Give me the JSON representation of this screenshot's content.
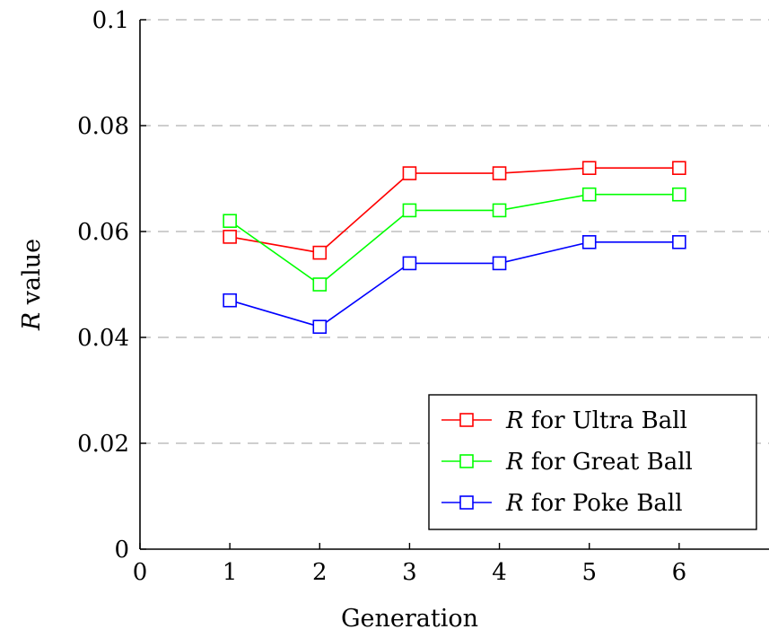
{
  "chart_data": {
    "type": "line",
    "x": [
      1,
      2,
      3,
      4,
      5,
      6
    ],
    "series": [
      {
        "name": "R for Ultra Ball",
        "values": [
          0.059,
          0.056,
          0.071,
          0.071,
          0.072,
          0.072
        ],
        "color": "#ff0000"
      },
      {
        "name": "R for Great Ball",
        "values": [
          0.062,
          0.05,
          0.064,
          0.064,
          0.067,
          0.067
        ],
        "color": "#00ff00"
      },
      {
        "name": "R for Poke Ball",
        "values": [
          0.047,
          0.042,
          0.054,
          0.054,
          0.058,
          0.058
        ],
        "color": "#0000ff"
      }
    ],
    "xlabel": "Generation",
    "ylabel": "R value",
    "xlim": [
      0,
      7
    ],
    "ylim": [
      0,
      0.1
    ],
    "xticks": [
      "0",
      "1",
      "2",
      "3",
      "4",
      "5",
      "6"
    ],
    "yticks": [
      "0",
      "0.02",
      "0.04",
      "0.06",
      "0.08",
      "0.1"
    ],
    "grid": "horizontal dashed",
    "legend_position": "bottom-right",
    "marker": "square"
  }
}
